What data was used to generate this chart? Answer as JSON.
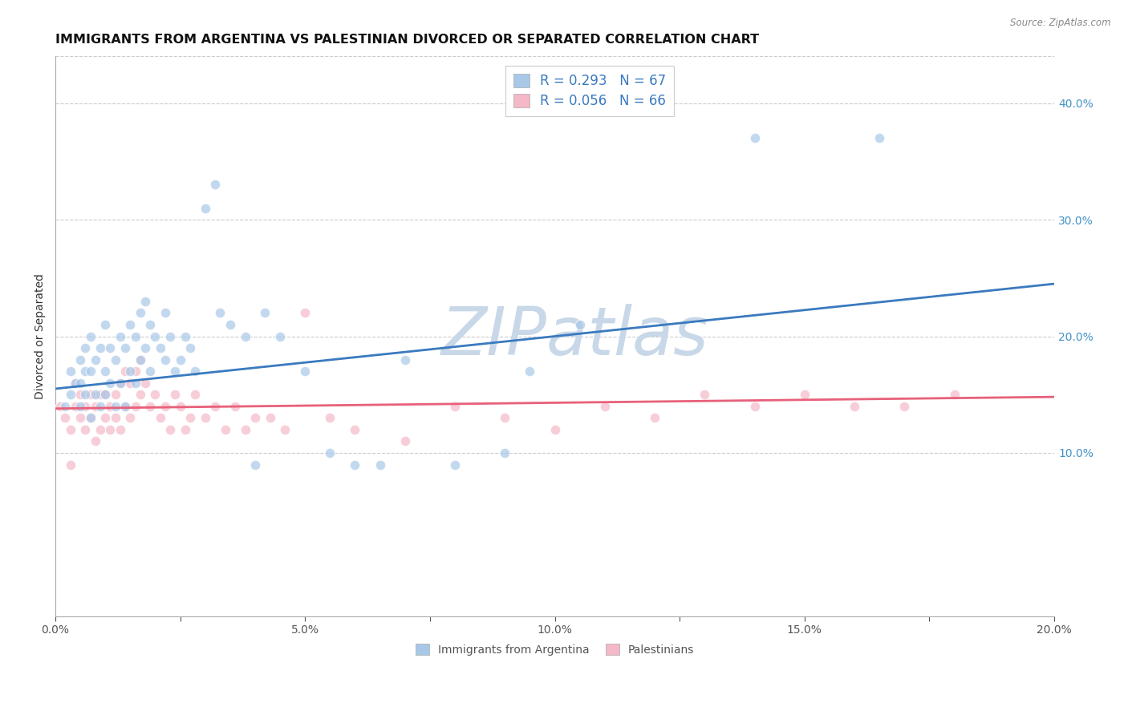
{
  "title": "IMMIGRANTS FROM ARGENTINA VS PALESTINIAN DIVORCED OR SEPARATED CORRELATION CHART",
  "source": "Source: ZipAtlas.com",
  "ylabel": "Divorced or Separated",
  "legend_labels": [
    "Immigrants from Argentina",
    "Palestinians"
  ],
  "legend_r": [
    "R = 0.293",
    "R = 0.056"
  ],
  "legend_n": [
    "N = 67",
    "N = 66"
  ],
  "blue_color": "#a8c8e8",
  "pink_color": "#f4b8c8",
  "blue_line_color": "#3a7abf",
  "pink_line_color": "#e8607a",
  "watermark": "ZIPatlas",
  "xlim": [
    0.0,
    0.2
  ],
  "ylim": [
    -0.04,
    0.44
  ],
  "xticklabels": [
    "0.0%",
    "",
    "5.0%",
    "",
    "10.0%",
    "",
    "15.0%",
    "",
    "20.0%"
  ],
  "xticks": [
    0.0,
    0.025,
    0.05,
    0.075,
    0.1,
    0.125,
    0.15,
    0.175,
    0.2
  ],
  "yticks_right": [
    0.1,
    0.2,
    0.3,
    0.4
  ],
  "ytick_right_labels": [
    "10.0%",
    "20.0%",
    "30.0%",
    "40.0%"
  ],
  "blue_scatter_x": [
    0.002,
    0.003,
    0.003,
    0.004,
    0.005,
    0.005,
    0.005,
    0.006,
    0.006,
    0.006,
    0.007,
    0.007,
    0.007,
    0.008,
    0.008,
    0.009,
    0.009,
    0.01,
    0.01,
    0.01,
    0.011,
    0.011,
    0.012,
    0.012,
    0.013,
    0.013,
    0.014,
    0.014,
    0.015,
    0.015,
    0.016,
    0.016,
    0.017,
    0.017,
    0.018,
    0.018,
    0.019,
    0.019,
    0.02,
    0.021,
    0.022,
    0.022,
    0.023,
    0.024,
    0.025,
    0.026,
    0.027,
    0.028,
    0.03,
    0.032,
    0.033,
    0.035,
    0.038,
    0.04,
    0.042,
    0.045,
    0.05,
    0.055,
    0.06,
    0.065,
    0.07,
    0.08,
    0.09,
    0.095,
    0.105,
    0.14,
    0.165
  ],
  "blue_scatter_y": [
    0.14,
    0.15,
    0.17,
    0.16,
    0.14,
    0.16,
    0.18,
    0.15,
    0.17,
    0.19,
    0.13,
    0.17,
    0.2,
    0.15,
    0.18,
    0.14,
    0.19,
    0.15,
    0.17,
    0.21,
    0.16,
    0.19,
    0.14,
    0.18,
    0.16,
    0.2,
    0.14,
    0.19,
    0.17,
    0.21,
    0.16,
    0.2,
    0.18,
    0.22,
    0.19,
    0.23,
    0.17,
    0.21,
    0.2,
    0.19,
    0.18,
    0.22,
    0.2,
    0.17,
    0.18,
    0.2,
    0.19,
    0.17,
    0.31,
    0.33,
    0.22,
    0.21,
    0.2,
    0.09,
    0.22,
    0.2,
    0.17,
    0.1,
    0.09,
    0.09,
    0.18,
    0.09,
    0.1,
    0.17,
    0.21,
    0.37,
    0.37
  ],
  "pink_scatter_x": [
    0.001,
    0.002,
    0.003,
    0.004,
    0.004,
    0.005,
    0.005,
    0.006,
    0.006,
    0.007,
    0.007,
    0.008,
    0.008,
    0.009,
    0.009,
    0.01,
    0.01,
    0.011,
    0.011,
    0.012,
    0.012,
    0.013,
    0.013,
    0.014,
    0.014,
    0.015,
    0.015,
    0.016,
    0.016,
    0.017,
    0.017,
    0.018,
    0.019,
    0.02,
    0.021,
    0.022,
    0.023,
    0.024,
    0.025,
    0.026,
    0.027,
    0.028,
    0.03,
    0.032,
    0.034,
    0.036,
    0.038,
    0.04,
    0.043,
    0.046,
    0.05,
    0.055,
    0.06,
    0.07,
    0.08,
    0.09,
    0.1,
    0.11,
    0.12,
    0.13,
    0.14,
    0.15,
    0.16,
    0.17,
    0.18,
    0.003
  ],
  "pink_scatter_y": [
    0.14,
    0.13,
    0.12,
    0.14,
    0.16,
    0.13,
    0.15,
    0.12,
    0.14,
    0.13,
    0.15,
    0.11,
    0.14,
    0.12,
    0.15,
    0.13,
    0.15,
    0.12,
    0.14,
    0.13,
    0.15,
    0.12,
    0.16,
    0.14,
    0.17,
    0.13,
    0.16,
    0.14,
    0.17,
    0.15,
    0.18,
    0.16,
    0.14,
    0.15,
    0.13,
    0.14,
    0.12,
    0.15,
    0.14,
    0.12,
    0.13,
    0.15,
    0.13,
    0.14,
    0.12,
    0.14,
    0.12,
    0.13,
    0.13,
    0.12,
    0.22,
    0.13,
    0.12,
    0.11,
    0.14,
    0.13,
    0.12,
    0.14,
    0.13,
    0.15,
    0.14,
    0.15,
    0.14,
    0.14,
    0.15,
    0.09
  ],
  "blue_trend_x": [
    0.0,
    0.2
  ],
  "blue_trend_y": [
    0.155,
    0.245
  ],
  "pink_trend_x": [
    0.0,
    0.2
  ],
  "pink_trend_y": [
    0.138,
    0.148
  ],
  "background_color": "#ffffff",
  "grid_color": "#cccccc",
  "title_fontsize": 11.5,
  "axis_label_fontsize": 10,
  "tick_fontsize": 10,
  "legend_fontsize": 12,
  "watermark_color": "#c8d8e8",
  "watermark_fontsize": 60
}
